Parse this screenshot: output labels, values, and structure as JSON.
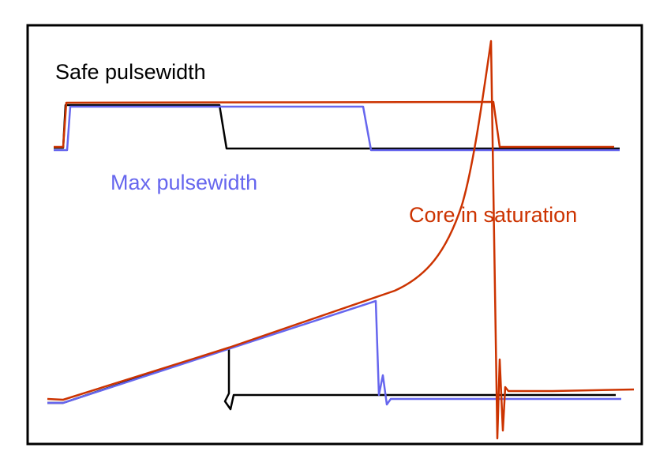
{
  "labels": {
    "safe": "Safe pulsewidth",
    "max": "Max pulsewidth",
    "saturation": "Core in saturation"
  }
}
